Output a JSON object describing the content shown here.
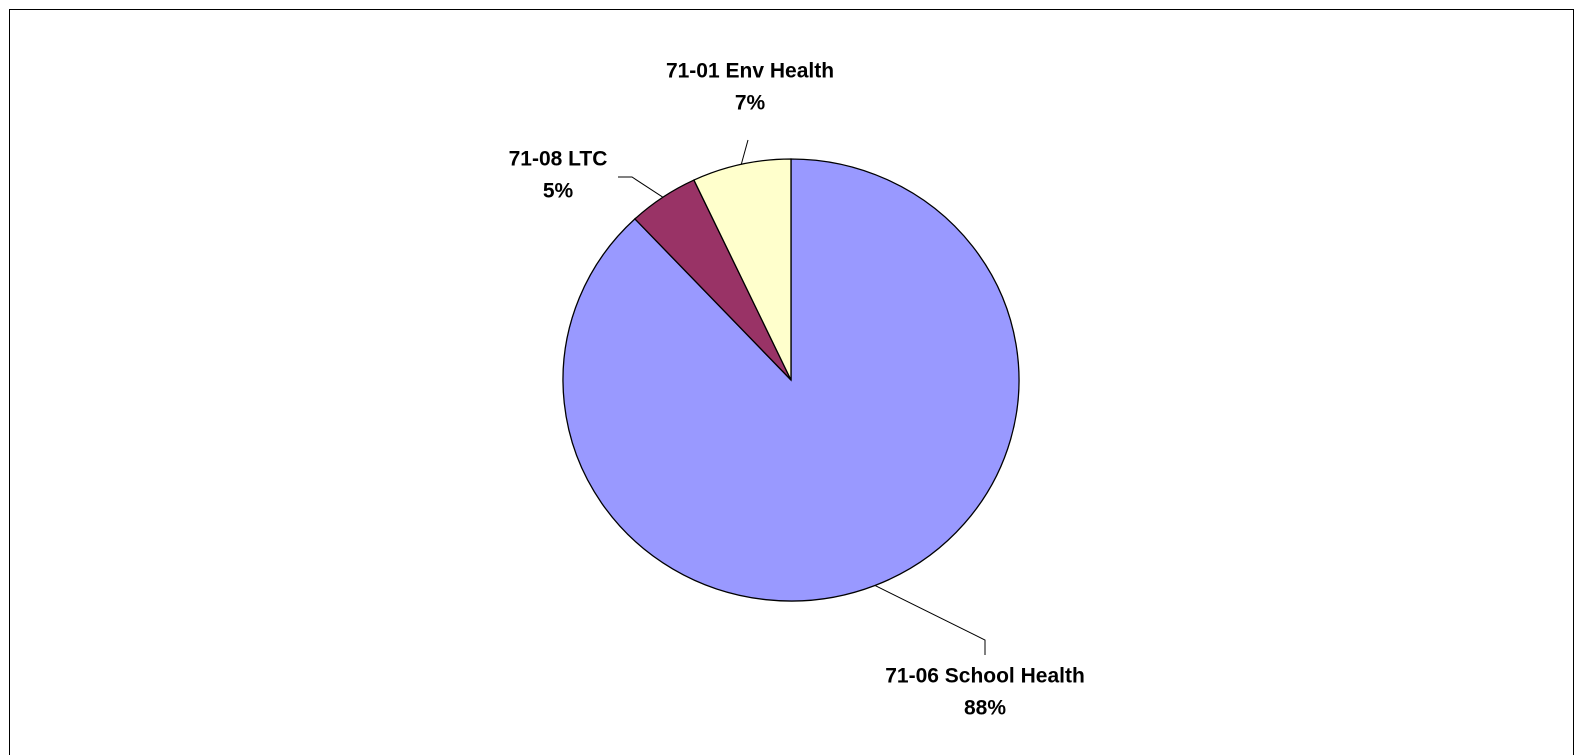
{
  "chart_data": {
    "type": "pie",
    "categories": [
      "71-06 School Health",
      "71-08 LTC",
      "71-01 Env Health"
    ],
    "values": [
      88,
      5,
      7
    ],
    "value_labels": [
      "88%",
      "5%",
      "7%"
    ],
    "colors": [
      "#9999ff",
      "#993366",
      "#ffffcc"
    ]
  }
}
